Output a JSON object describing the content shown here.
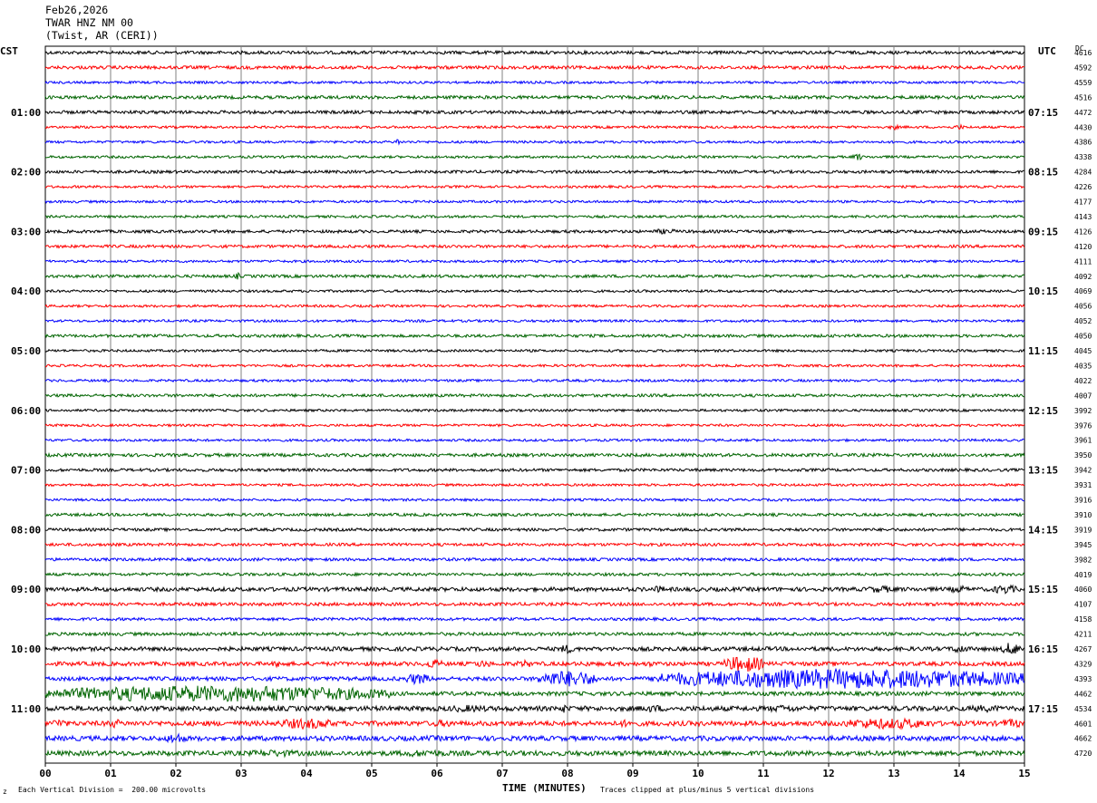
{
  "header": {
    "date": "Feb26,2026",
    "station": "TWAR HNZ NM 00",
    "location": "(Twist, AR (CERI))"
  },
  "left_axis_title": "CST",
  "right_axis_title": "UTC",
  "dc_label": "DC",
  "footer": {
    "mark": "z",
    "scale_note": "Each Vertical Division =  200.00 microvolts",
    "clip_note": "Traces clipped at plus/minus 5 vertical divisions"
  },
  "colors": {
    "black": "#000000",
    "red": "#ff0000",
    "blue": "#0000ff",
    "green": "#006400",
    "grid": "#808080"
  },
  "chart_data": {
    "type": "line",
    "title": "TWAR HNZ NM 00",
    "xlabel": "TIME (MINUTES)",
    "ylabel": "",
    "x_ticks": [
      "00",
      "01",
      "02",
      "03",
      "04",
      "05",
      "06",
      "07",
      "08",
      "09",
      "10",
      "11",
      "12",
      "13",
      "14",
      "15"
    ],
    "xlim": [
      0,
      15
    ],
    "trace_minutes": 15,
    "trace_colors_cycle": [
      "black",
      "red",
      "blue",
      "green"
    ],
    "left_time_labels": [
      "01:00",
      "02:00",
      "03:00",
      "04:00",
      "05:00",
      "06:00",
      "07:00",
      "08:00",
      "09:00",
      "10:00",
      "11:00"
    ],
    "right_time_labels": [
      "07:15",
      "08:15",
      "09:15",
      "10:15",
      "11:15",
      "12:15",
      "13:15",
      "14:15",
      "15:15",
      "16:15",
      "17:15"
    ],
    "dc_offsets": [
      4616,
      4592,
      4559,
      4516,
      4472,
      4430,
      4386,
      4338,
      4284,
      4226,
      4177,
      4143,
      4126,
      4120,
      4111,
      4092,
      4069,
      4056,
      4052,
      4050,
      4045,
      4035,
      4022,
      4007,
      3992,
      3976,
      3961,
      3950,
      3942,
      3931,
      3916,
      3910,
      3919,
      3945,
      3982,
      4019,
      4060,
      4107,
      4158,
      4211,
      4267,
      4329,
      4393,
      4462,
      4534,
      4601,
      4662,
      4720
    ],
    "noise_level": [
      2,
      2,
      1.5,
      2,
      2,
      1.5,
      1.5,
      1.5,
      1.8,
      1.5,
      1.5,
      1.5,
      1.8,
      1.8,
      1.5,
      1.8,
      1.5,
      1.5,
      1.5,
      1.8,
      1.5,
      1.5,
      1.5,
      1.8,
      1.5,
      1.5,
      1.5,
      2,
      1.8,
      1.5,
      1.5,
      1.8,
      1.8,
      1.8,
      1.8,
      1.8,
      2.5,
      2,
      1.8,
      2,
      2.5,
      2.5,
      2.5,
      2.5,
      3,
      3,
      3,
      3
    ],
    "events": [
      {
        "trace": 5,
        "minute": 13.0,
        "amp": 3,
        "dur": 0.15
      },
      {
        "trace": 5,
        "minute": 14.0,
        "amp": 3,
        "dur": 0.15
      },
      {
        "trace": 6,
        "minute": 5.4,
        "amp": 7,
        "dur": 0.05
      },
      {
        "trace": 7,
        "minute": 12.45,
        "amp": 4,
        "dur": 0.15
      },
      {
        "trace": 12,
        "minute": 9.5,
        "amp": 3,
        "dur": 0.4
      },
      {
        "trace": 15,
        "minute": 2.95,
        "amp": 4,
        "dur": 0.08
      },
      {
        "trace": 36,
        "minute": 9.4,
        "amp": 4,
        "dur": 0.2
      },
      {
        "trace": 36,
        "minute": 12.8,
        "amp": 4,
        "dur": 0.5
      },
      {
        "trace": 36,
        "minute": 14.0,
        "amp": 4,
        "dur": 0.3
      },
      {
        "trace": 36,
        "minute": 14.7,
        "amp": 5,
        "dur": 0.4
      },
      {
        "trace": 40,
        "minute": 8.0,
        "amp": 5,
        "dur": 0.25
      },
      {
        "trace": 40,
        "minute": 14.0,
        "amp": 5,
        "dur": 0.25
      },
      {
        "trace": 40,
        "minute": 14.8,
        "amp": 7,
        "dur": 0.3
      },
      {
        "trace": 41,
        "minute": 3.6,
        "amp": 4,
        "dur": 0.25
      },
      {
        "trace": 41,
        "minute": 5.95,
        "amp": 5,
        "dur": 0.3
      },
      {
        "trace": 41,
        "minute": 6.7,
        "amp": 4,
        "dur": 0.3
      },
      {
        "trace": 41,
        "minute": 7.35,
        "amp": 4,
        "dur": 0.3
      },
      {
        "trace": 41,
        "minute": 8.3,
        "amp": 3,
        "dur": 0.2
      },
      {
        "trace": 41,
        "minute": 9.25,
        "amp": 3,
        "dur": 0.3
      },
      {
        "trace": 41,
        "minute": 10.7,
        "amp": 9,
        "dur": 0.6
      },
      {
        "trace": 42,
        "minute": 5.7,
        "amp": 6,
        "dur": 0.4
      },
      {
        "trace": 42,
        "minute": 8.0,
        "amp": 9,
        "dur": 0.9
      },
      {
        "trace": 42,
        "minute": 12.2,
        "amp": 11,
        "dur": 5.8
      },
      {
        "trace": 43,
        "minute": 2.6,
        "amp": 9,
        "dur": 5.4
      },
      {
        "trace": 44,
        "minute": 6.5,
        "amp": 4,
        "dur": 0.8
      },
      {
        "trace": 44,
        "minute": 7.95,
        "amp": 5,
        "dur": 0.1
      },
      {
        "trace": 44,
        "minute": 9.3,
        "amp": 4,
        "dur": 0.5
      },
      {
        "trace": 44,
        "minute": 11.3,
        "amp": 4,
        "dur": 0.6
      },
      {
        "trace": 44,
        "minute": 14.4,
        "amp": 4,
        "dur": 0.6
      },
      {
        "trace": 45,
        "minute": 0.2,
        "amp": 5,
        "dur": 0.3
      },
      {
        "trace": 45,
        "minute": 1.05,
        "amp": 5,
        "dur": 0.25
      },
      {
        "trace": 45,
        "minute": 4.0,
        "amp": 6,
        "dur": 0.9
      },
      {
        "trace": 45,
        "minute": 6.1,
        "amp": 4,
        "dur": 0.5
      },
      {
        "trace": 45,
        "minute": 8.9,
        "amp": 4,
        "dur": 0.4
      },
      {
        "trace": 45,
        "minute": 12.9,
        "amp": 6,
        "dur": 1.5
      },
      {
        "trace": 45,
        "minute": 14.8,
        "amp": 5,
        "dur": 0.4
      },
      {
        "trace": 46,
        "minute": 2.0,
        "amp": 6,
        "dur": 0.3
      },
      {
        "trace": 46,
        "minute": 6.0,
        "amp": 3,
        "dur": 1.0
      },
      {
        "trace": 47,
        "minute": 3.5,
        "amp": 4,
        "dur": 1.0
      },
      {
        "trace": 47,
        "minute": 5.8,
        "amp": 4,
        "dur": 1.0
      }
    ]
  }
}
